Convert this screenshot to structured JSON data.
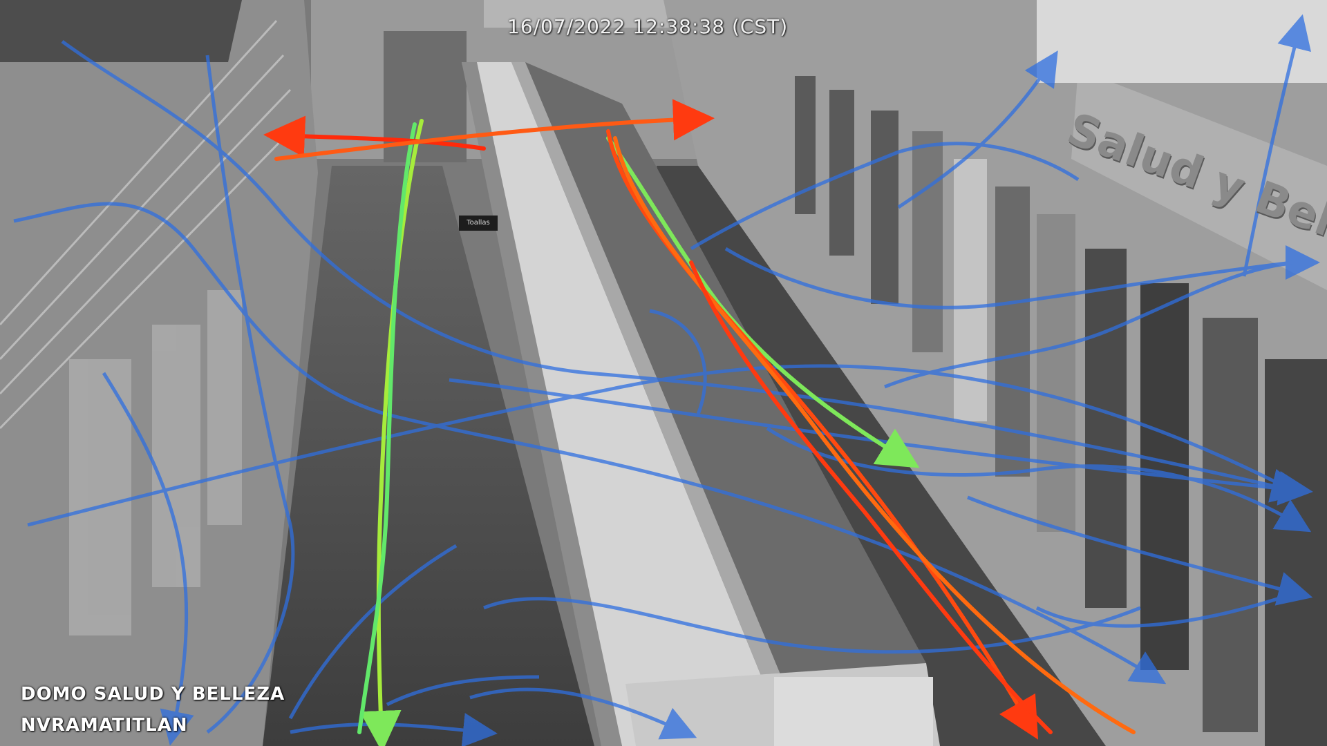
{
  "camera": {
    "timestamp": "16/07/2022 12:38:38 (CST)",
    "label_line1": "DOMO SALUD Y BELLEZA",
    "label_line2": "NVRAMATITLAN"
  },
  "scene": {
    "sign_text": "Salud y Belleza",
    "aisle_tag": "Toallas"
  },
  "colors": {
    "trail_blue": "#2f6fe0",
    "trail_green": "#7ee85a",
    "trail_red": "#ff3a10",
    "trail_orange": "#ff6a10"
  }
}
